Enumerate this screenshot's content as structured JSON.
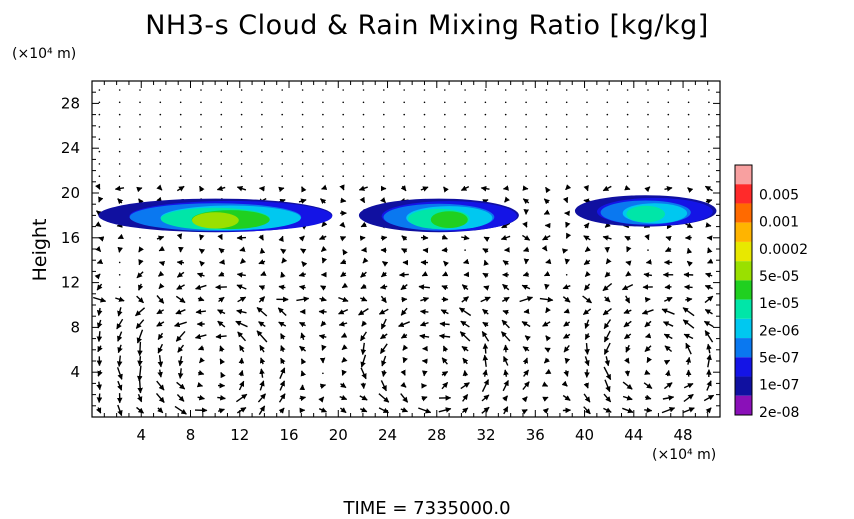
{
  "chart_data": {
    "type": "heatmap",
    "title": "NH3-s Cloud & Rain Mixing Ratio [kg/kg]",
    "ylabel": "Height",
    "xlabel": "",
    "y_unit": "(×10⁴ m)",
    "x_unit": "(×10⁴ m)",
    "xlim": [
      0,
      51
    ],
    "ylim": [
      0,
      30
    ],
    "x_ticks": [
      "4",
      "8",
      "12",
      "16",
      "20",
      "24",
      "28",
      "32",
      "36",
      "40",
      "44",
      "48"
    ],
    "y_ticks": [
      "4",
      "8",
      "12",
      "16",
      "20",
      "24",
      "28"
    ],
    "legend": {
      "placement": "right",
      "labels": [
        "0.005",
        "0.001",
        "0.0002",
        "5e-05",
        "1e-05",
        "2e-06",
        "5e-07",
        "1e-07",
        "2e-08"
      ],
      "colors": [
        "#f8a0a0",
        "#ff2a2a",
        "#ff6a00",
        "#ffb400",
        "#e8e800",
        "#9ae000",
        "#20d020",
        "#00e6a8",
        "#00c8f0",
        "#0a78f0",
        "#1414e6",
        "#1010a0",
        "#8a10b8"
      ]
    },
    "cloud_layers": [
      {
        "x_range": [
          1,
          20
        ],
        "y_range": [
          16.5,
          19.5
        ],
        "peak_value": "0.0002"
      },
      {
        "x_range": [
          22,
          35
        ],
        "y_range": [
          16.5,
          19.5
        ],
        "peak_value": "5e-05"
      },
      {
        "x_range": [
          39.5,
          51
        ],
        "y_range": [
          17,
          19.8
        ],
        "peak_value": "1e-05"
      }
    ],
    "overlay": "wind vectors",
    "grid": false
  },
  "time_label": "TIME  =  7335000.0"
}
